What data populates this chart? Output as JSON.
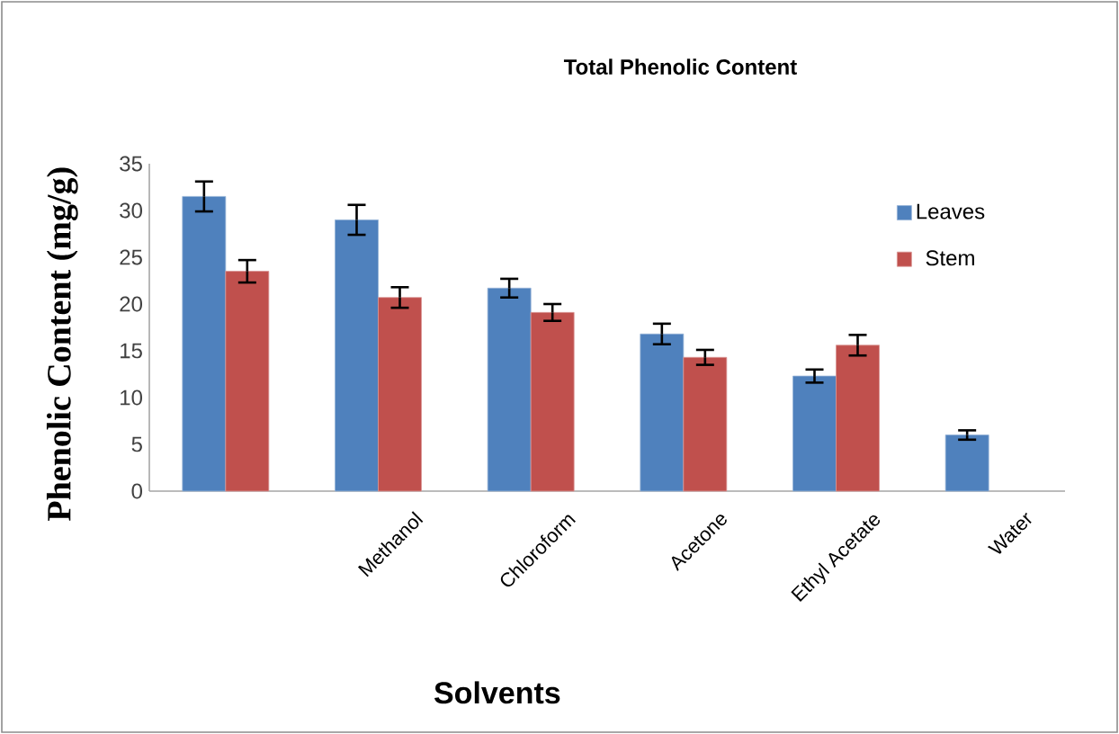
{
  "chart_data": {
    "type": "bar",
    "title": "Total Phenolic Content",
    "xlabel": "Solvents",
    "ylabel": "Phenolic Content (mg/g)",
    "categories": [
      null,
      "Methanol",
      "Chloroform",
      "Acetone",
      "Ethyl Acetate",
      "Water"
    ],
    "series": [
      {
        "name": "Leaves",
        "color": "#4f81bd",
        "values": [
          31.5,
          29.0,
          21.7,
          16.8,
          12.3,
          6.0
        ],
        "errors": [
          1.6,
          1.6,
          1.0,
          1.1,
          0.7,
          0.5
        ]
      },
      {
        "name": "Stem",
        "color": "#c0504d",
        "values": [
          23.5,
          20.7,
          19.1,
          14.3,
          15.6,
          null
        ],
        "errors": [
          1.2,
          1.1,
          0.9,
          0.8,
          1.1,
          null
        ]
      }
    ],
    "ylim": [
      0,
      35
    ],
    "yticks": [
      0,
      5,
      10,
      15,
      20,
      25,
      30,
      35
    ],
    "grid": false,
    "legend": "right"
  }
}
